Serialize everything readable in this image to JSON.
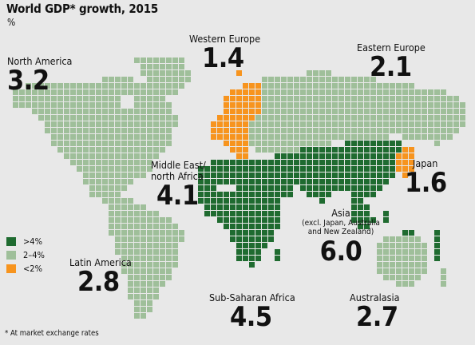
{
  "title": "World GDP* growth, 2015",
  "unit": "%",
  "footnote": "* At market exchange rates",
  "colors": {
    "high": "#1f6b30",
    "mid": "#9fbf9a",
    "low": "#f7941e",
    "background": "#e8e8e8"
  },
  "legend": [
    {
      "label": ">4%",
      "color": "#1f6b30"
    },
    {
      "label": "2–4%",
      "color": "#9fbf9a"
    },
    {
      "label": "<2%",
      "color": "#f7941e"
    }
  ],
  "regions": [
    {
      "id": "north-america",
      "name": "North America",
      "value": "3.2",
      "category": "mid"
    },
    {
      "id": "western-europe",
      "name": "Western Europe",
      "value": "1.4",
      "category": "low"
    },
    {
      "id": "eastern-europe",
      "name": "Eastern Europe",
      "value": "2.1",
      "category": "mid"
    },
    {
      "id": "middle-east",
      "name": "Middle East/\nnorth Africa",
      "value": "4.1",
      "category": "high"
    },
    {
      "id": "japan",
      "name": "Japan",
      "value": "1.6",
      "category": "low"
    },
    {
      "id": "asia",
      "name": "Asia",
      "subtitle": "(excl. Japan, Australia\nand New Zealand)",
      "value": "6.0",
      "category": "high"
    },
    {
      "id": "latin-america",
      "name": "Latin America",
      "value": "2.8",
      "category": "mid"
    },
    {
      "id": "sub-saharan-africa",
      "name": "Sub-Saharan Africa",
      "value": "4.5",
      "category": "high"
    },
    {
      "id": "australasia",
      "name": "Australasia",
      "value": "2.7",
      "category": "mid"
    }
  ]
}
